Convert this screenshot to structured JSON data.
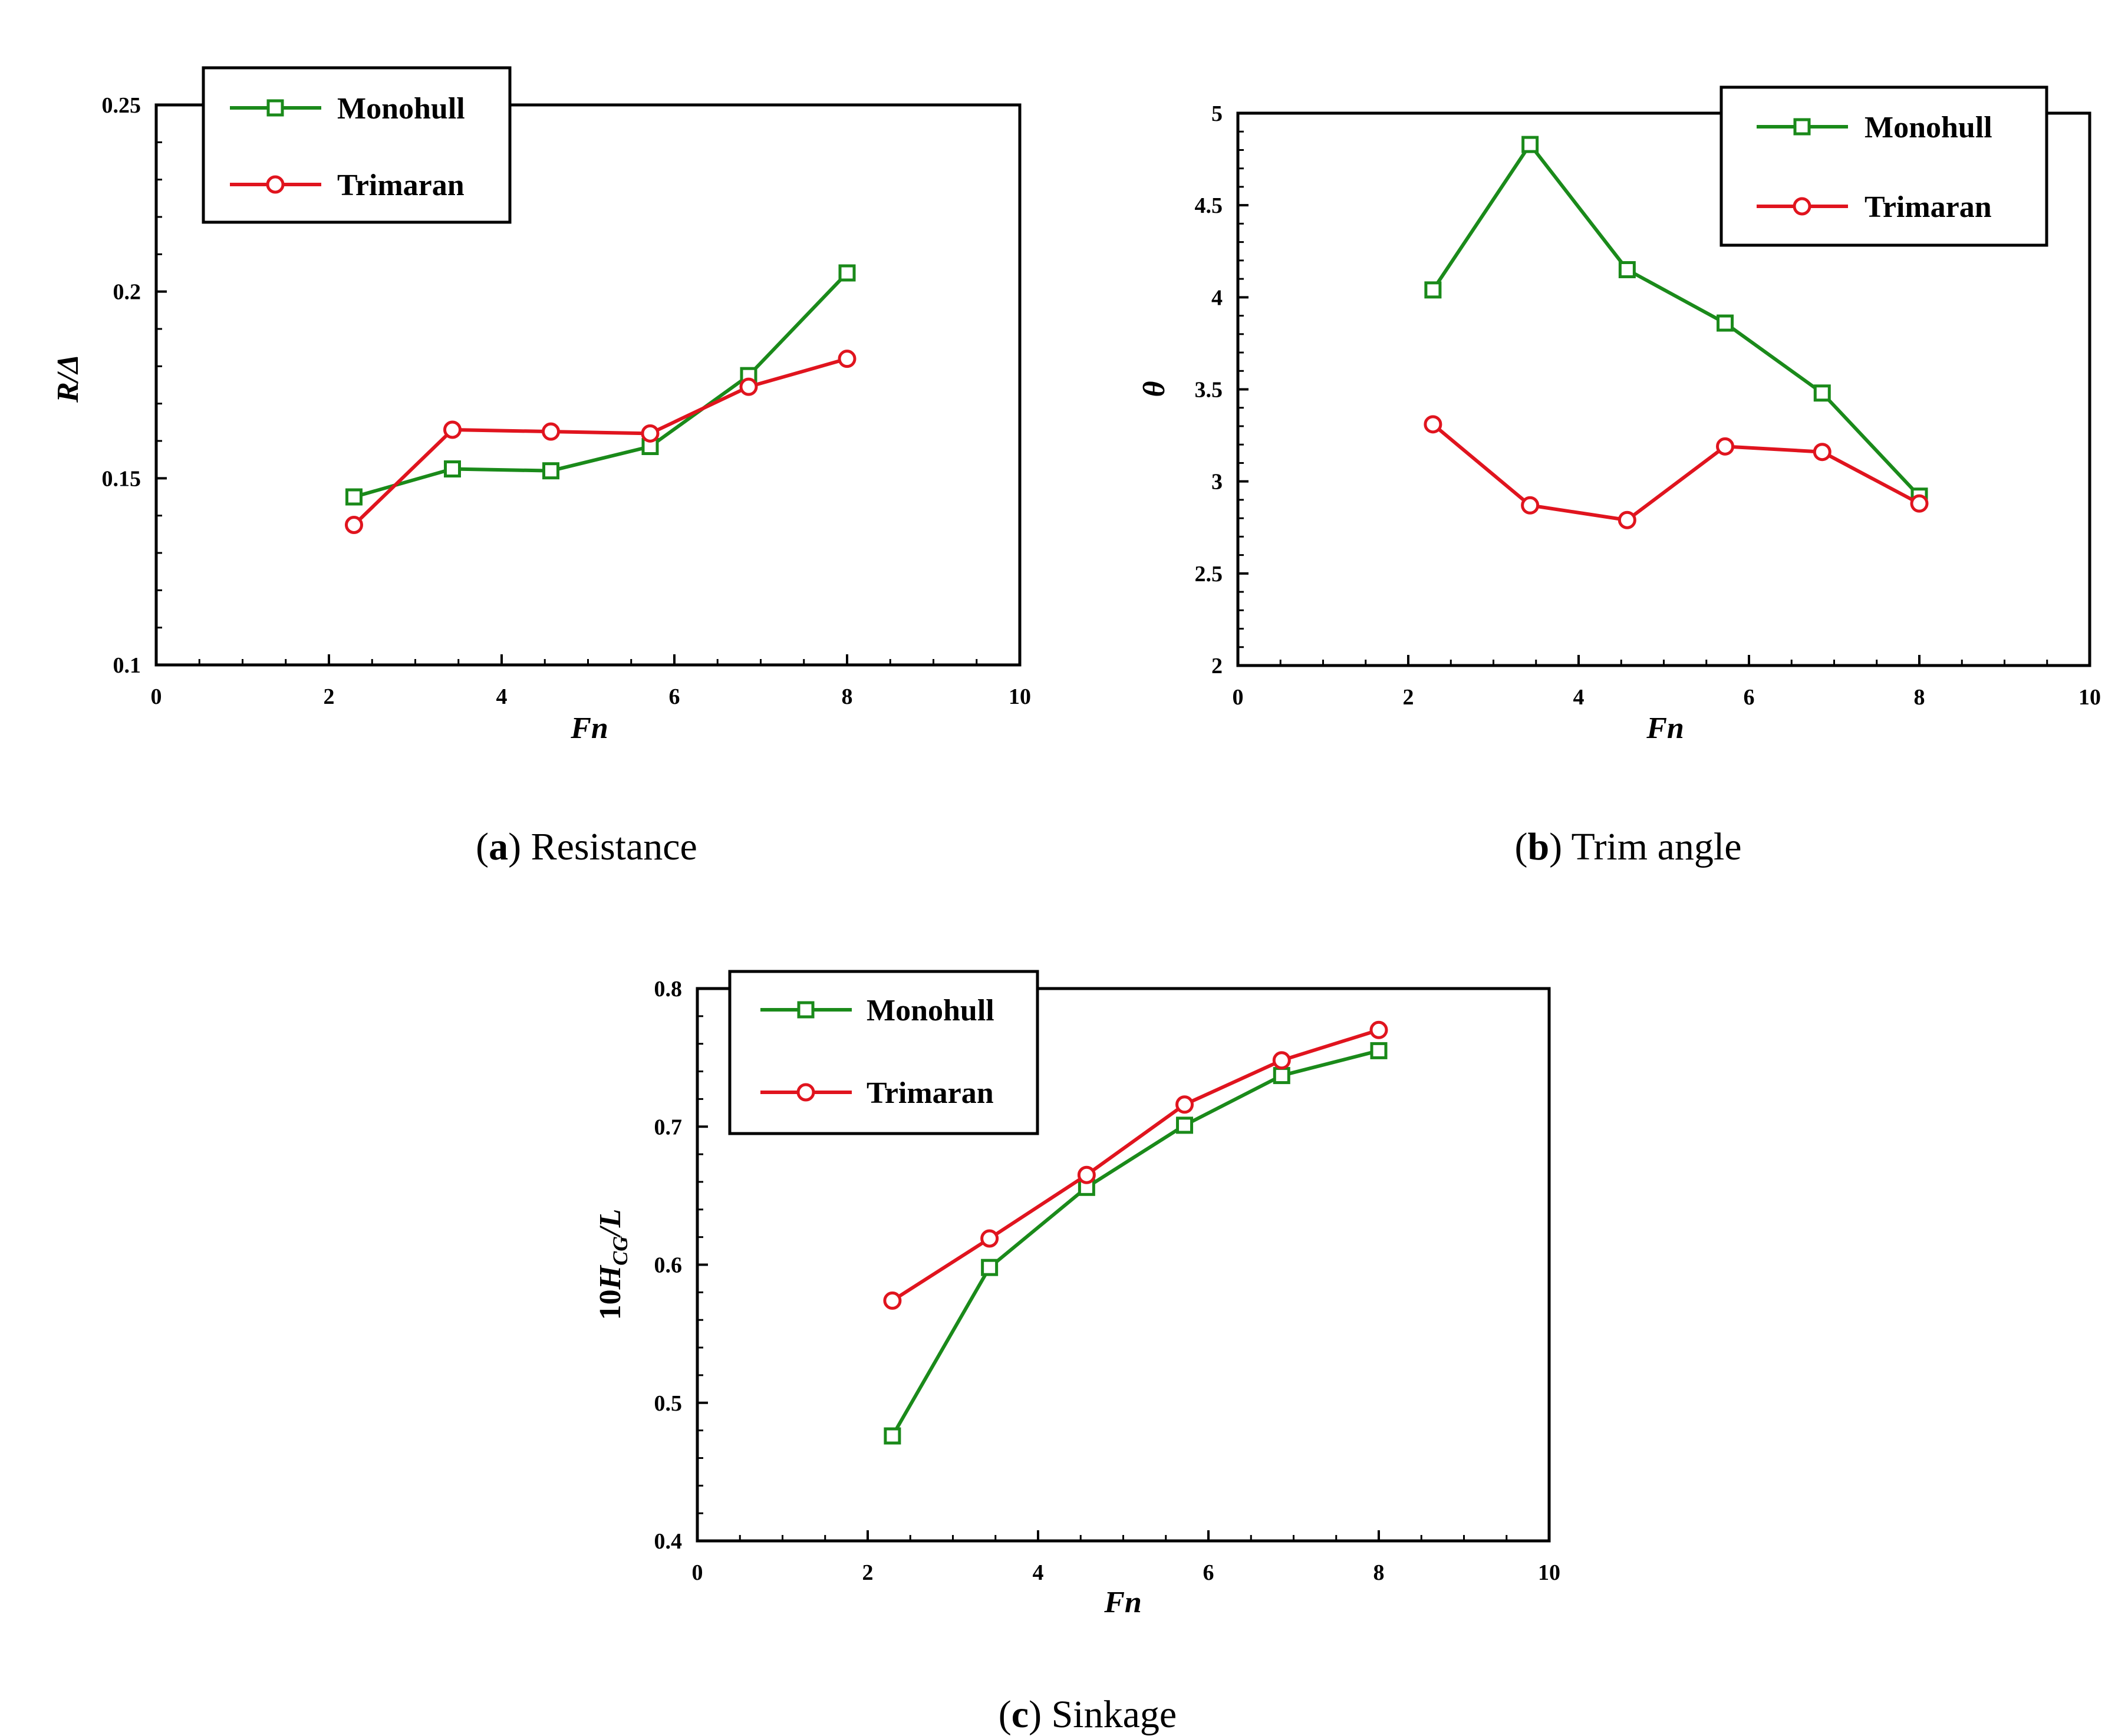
{
  "chart_data": [
    {
      "id": "a",
      "type": "line",
      "caption_letter": "a",
      "caption_text": "Resistance",
      "xlabel": "Fn",
      "ylabel": "R/Δ",
      "xlim": [
        0,
        10
      ],
      "ylim": [
        0.1,
        0.25
      ],
      "xticks": [
        "0",
        "2",
        "4",
        "6",
        "8",
        "10"
      ],
      "yticks": [
        "0.1",
        "0.15",
        "0.2",
        "0.25"
      ],
      "grid": false,
      "legend_position": "top-left",
      "series": [
        {
          "name": "Monohull",
          "color": "#1a8a1a",
          "marker": "square",
          "x": [
            2.29,
            3.43,
            4.57,
            5.72,
            6.86,
            8.0
          ],
          "y": [
            0.145,
            0.1525,
            0.152,
            0.1585,
            0.1775,
            0.205
          ]
        },
        {
          "name": "Trimaran",
          "color": "#e0141e",
          "marker": "circle",
          "x": [
            2.29,
            3.43,
            4.57,
            5.72,
            6.86,
            8.0
          ],
          "y": [
            0.1375,
            0.163,
            0.1625,
            0.162,
            0.1745,
            0.182
          ]
        }
      ]
    },
    {
      "id": "b",
      "type": "line",
      "caption_letter": "b",
      "caption_text": "Trim angle",
      "xlabel": "Fn",
      "ylabel": "θ",
      "xlim": [
        0,
        10
      ],
      "ylim": [
        2,
        5
      ],
      "xticks": [
        "0",
        "2",
        "4",
        "6",
        "8",
        "10"
      ],
      "yticks": [
        "2",
        "2.5",
        "3",
        "3.5",
        "4",
        "4.5",
        "5"
      ],
      "grid": false,
      "legend_position": "top-right",
      "series": [
        {
          "name": "Monohull",
          "color": "#1a8a1a",
          "marker": "square",
          "x": [
            2.29,
            3.43,
            4.57,
            5.72,
            6.86,
            8.0
          ],
          "y": [
            4.04,
            4.83,
            4.15,
            3.86,
            3.48,
            2.92
          ]
        },
        {
          "name": "Trimaran",
          "color": "#e0141e",
          "marker": "circle",
          "x": [
            2.29,
            3.43,
            4.57,
            5.72,
            6.86,
            8.0
          ],
          "y": [
            3.31,
            2.87,
            2.79,
            3.19,
            3.16,
            2.88
          ]
        }
      ]
    },
    {
      "id": "c",
      "type": "line",
      "caption_letter": "c",
      "caption_text": "Sinkage",
      "xlabel": "Fn",
      "ylabel_prefix": "10",
      "ylabel_main": "H",
      "ylabel_sub": "CG",
      "ylabel_suffix": "/L",
      "xlim": [
        0,
        10
      ],
      "ylim": [
        0.4,
        0.8
      ],
      "xticks": [
        "0",
        "2",
        "4",
        "6",
        "8",
        "10"
      ],
      "yticks": [
        "0.4",
        "0.5",
        "0.6",
        "0.7",
        "0.8"
      ],
      "grid": false,
      "legend_position": "top-left",
      "series": [
        {
          "name": "Monohull",
          "color": "#1a8a1a",
          "marker": "square",
          "x": [
            2.29,
            3.43,
            4.57,
            5.72,
            6.86,
            8.0
          ],
          "y": [
            0.476,
            0.598,
            0.656,
            0.701,
            0.737,
            0.755
          ]
        },
        {
          "name": "Trimaran",
          "color": "#e0141e",
          "marker": "circle",
          "x": [
            2.29,
            3.43,
            4.57,
            5.72,
            6.86,
            8.0
          ],
          "y": [
            0.574,
            0.619,
            0.665,
            0.716,
            0.748,
            0.77
          ]
        }
      ]
    }
  ]
}
